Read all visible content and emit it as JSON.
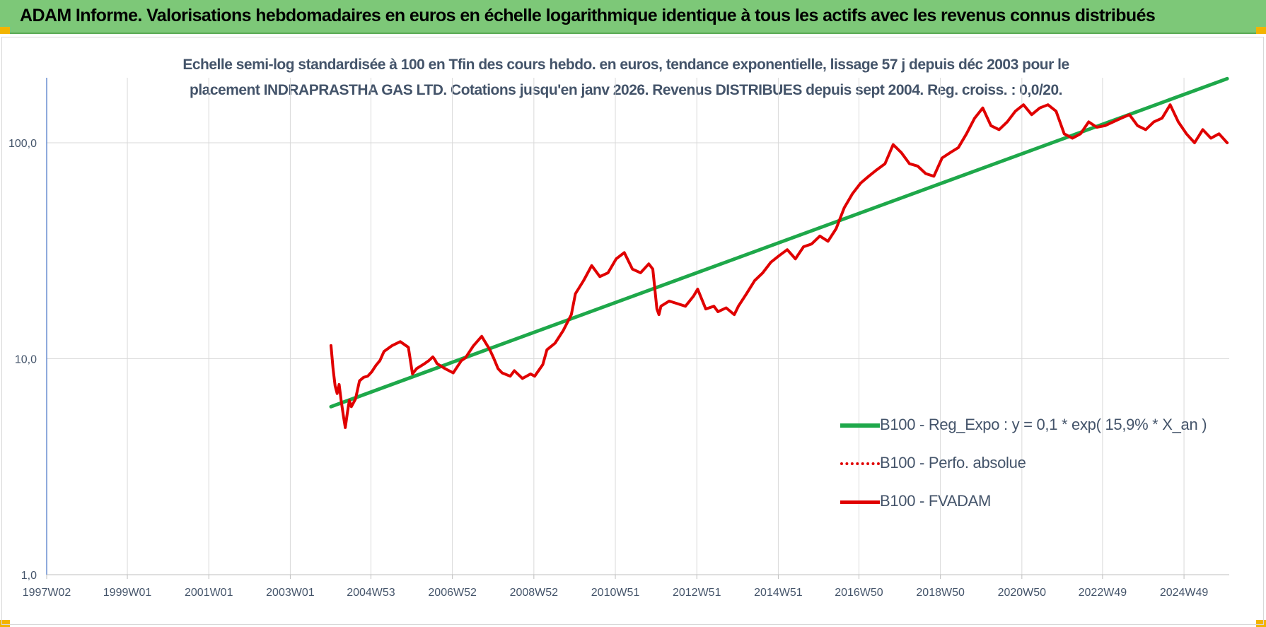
{
  "header": {
    "title": "ADAM Informe. Valorisations hebdomadaires en euros en échelle logarithmique identique à tous les actifs avec les revenus connus distribués"
  },
  "chart_data": {
    "type": "line",
    "title_lines": [
      "Echelle semi-log standardisée à 100 en Tfin des cours hebdo. en euros, tendance exponentielle, lissage 57 j depuis déc 2003 pour le",
      "placement INDRAPRASTHA GAS LTD. Cotations jusqu'en janv 2026. Revenus DISTRIBUES depuis sept 2004. Reg. croiss. : 0,0/20."
    ],
    "y_scale": "log",
    "ylim": [
      1,
      200
    ],
    "y_ticks": [
      {
        "value": 1,
        "label": "1,0"
      },
      {
        "value": 10,
        "label": "10,0"
      },
      {
        "value": 100,
        "label": "100,0"
      }
    ],
    "xlim": [
      1997.02,
      2026.05
    ],
    "x_ticks": [
      {
        "value": 1997.02,
        "label": "1997W02"
      },
      {
        "value": 1999.0,
        "label": "1999W01"
      },
      {
        "value": 2001.0,
        "label": "2001W01"
      },
      {
        "value": 2003.0,
        "label": "2003W01"
      },
      {
        "value": 2004.98,
        "label": "2004W53"
      },
      {
        "value": 2006.98,
        "label": "2006W52"
      },
      {
        "value": 2008.98,
        "label": "2008W52"
      },
      {
        "value": 2010.98,
        "label": "2010W51"
      },
      {
        "value": 2012.98,
        "label": "2012W51"
      },
      {
        "value": 2014.98,
        "label": "2014W51"
      },
      {
        "value": 2016.96,
        "label": "2016W50"
      },
      {
        "value": 2018.96,
        "label": "2018W50"
      },
      {
        "value": 2020.96,
        "label": "2020W50"
      },
      {
        "value": 2022.94,
        "label": "2022W49"
      },
      {
        "value": 2024.94,
        "label": "2024W49"
      }
    ],
    "series": [
      {
        "name": "B100 - Reg_Expo : y = 0,1 * exp( 15,9% *  X_an )",
        "color": "#1ea84a",
        "style": "solid",
        "x": [
          2004.0,
          2026.0
        ],
        "y": [
          6.0,
          198
        ]
      },
      {
        "name": "B100 - Perfo. absolue",
        "color": "#e00000",
        "style": "dotted",
        "x": [],
        "y": []
      },
      {
        "name": "B100 - FVADAM",
        "color": "#e00000",
        "style": "solid",
        "x": [
          2004.0,
          2004.05,
          2004.1,
          2004.15,
          2004.2,
          2004.25,
          2004.3,
          2004.35,
          2004.4,
          2004.45,
          2004.5,
          2004.6,
          2004.7,
          2004.8,
          2004.9,
          2005.0,
          2005.1,
          2005.2,
          2005.3,
          2005.5,
          2005.7,
          2005.9,
          2006.0,
          2006.1,
          2006.3,
          2006.4,
          2006.5,
          2006.55,
          2006.6,
          2006.8,
          2007.0,
          2007.2,
          2007.3,
          2007.5,
          2007.7,
          2007.9,
          2008.0,
          2008.1,
          2008.2,
          2008.4,
          2008.5,
          2008.7,
          2008.9,
          2009.0,
          2009.2,
          2009.3,
          2009.5,
          2009.7,
          2009.9,
          2010.0,
          2010.2,
          2010.4,
          2010.6,
          2010.8,
          2011.0,
          2011.2,
          2011.4,
          2011.6,
          2011.8,
          2011.9,
          2012.0,
          2012.05,
          2012.1,
          2012.3,
          2012.5,
          2012.7,
          2012.9,
          2013.0,
          2013.2,
          2013.4,
          2013.5,
          2013.7,
          2013.9,
          2014.0,
          2014.2,
          2014.4,
          2014.6,
          2014.8,
          2015.0,
          2015.2,
          2015.4,
          2015.6,
          2015.8,
          2016.0,
          2016.2,
          2016.4,
          2016.6,
          2016.8,
          2017.0,
          2017.2,
          2017.4,
          2017.6,
          2017.8,
          2018.0,
          2018.2,
          2018.4,
          2018.6,
          2018.8,
          2019.0,
          2019.2,
          2019.4,
          2019.6,
          2019.8,
          2020.0,
          2020.2,
          2020.4,
          2020.6,
          2020.8,
          2021.0,
          2021.2,
          2021.4,
          2021.6,
          2021.8,
          2022.0,
          2022.2,
          2022.4,
          2022.6,
          2022.8,
          2023.0,
          2023.2,
          2023.4,
          2023.6,
          2023.8,
          2024.0,
          2024.2,
          2024.4,
          2024.6,
          2024.8,
          2025.0,
          2025.2,
          2025.4,
          2025.6,
          2025.8,
          2026.0
        ],
        "y": [
          11.5,
          9.0,
          7.5,
          6.9,
          7.6,
          6.4,
          5.5,
          4.8,
          5.6,
          6.4,
          6.0,
          6.5,
          7.9,
          8.2,
          8.3,
          8.7,
          9.3,
          9.8,
          10.8,
          11.5,
          12.0,
          11.3,
          8.5,
          9.0,
          9.5,
          9.8,
          10.2,
          9.9,
          9.5,
          9.0,
          8.6,
          9.8,
          10.1,
          11.5,
          12.7,
          11.0,
          10.0,
          9.0,
          8.6,
          8.3,
          8.8,
          8.1,
          8.5,
          8.3,
          9.4,
          11.0,
          11.8,
          13.5,
          16.0,
          20.0,
          23.0,
          27.0,
          24.0,
          25.0,
          29.0,
          31.0,
          26.0,
          25.0,
          27.5,
          26.0,
          17.0,
          16.0,
          17.5,
          18.5,
          18.0,
          17.5,
          19.5,
          21.0,
          17.0,
          17.5,
          16.5,
          17.2,
          16.0,
          17.5,
          20.0,
          23.0,
          25.0,
          28.0,
          30.0,
          32.0,
          29.0,
          33.0,
          34.0,
          37.0,
          35.0,
          40.0,
          50.0,
          58.0,
          65.0,
          70.0,
          75.0,
          80.0,
          98.0,
          90.0,
          80.0,
          78.0,
          72.0,
          70.0,
          85.0,
          90.0,
          95.0,
          110.0,
          130.0,
          145.0,
          120.0,
          115.0,
          125.0,
          140.0,
          150.0,
          135.0,
          145.0,
          150.0,
          140.0,
          110.0,
          105.0,
          110.0,
          125.0,
          118.0,
          120.0,
          125.0,
          130.0,
          135.0,
          120.0,
          115.0,
          125.0,
          130.0,
          150.0,
          125.0,
          110.0,
          100.0,
          115.0,
          105.0,
          110.0,
          100.0
        ]
      }
    ],
    "legend_position": "bottom-right"
  }
}
